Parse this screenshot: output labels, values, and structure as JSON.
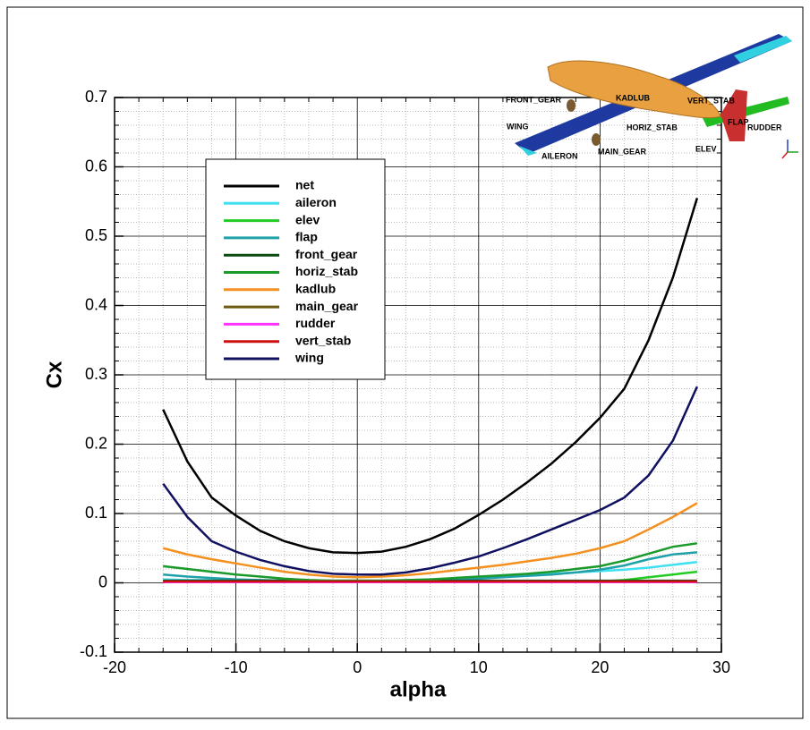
{
  "chart_data": {
    "type": "line",
    "xlabel": "alpha",
    "ylabel": "Cx",
    "x": [
      -16,
      -14,
      -12,
      -10,
      -8,
      -6,
      -4,
      -2,
      0,
      2,
      4,
      6,
      8,
      10,
      12,
      14,
      16,
      18,
      20,
      22,
      24,
      26,
      28
    ],
    "xlim": [
      -20,
      30
    ],
    "xticks": [
      -20,
      -10,
      0,
      10,
      20,
      30
    ],
    "ylim": [
      -0.1,
      0.7
    ],
    "yticks": [
      -0.1,
      0,
      0.1,
      0.2,
      0.3,
      0.4,
      0.5,
      0.6,
      0.7
    ],
    "grid": true,
    "series": [
      {
        "name": "net",
        "color": "#000000",
        "values": [
          0.25,
          0.175,
          0.123,
          0.097,
          0.075,
          0.06,
          0.05,
          0.044,
          0.043,
          0.045,
          0.052,
          0.063,
          0.078,
          0.098,
          0.12,
          0.145,
          0.172,
          0.203,
          0.238,
          0.28,
          0.35,
          0.44,
          0.555
        ]
      },
      {
        "name": "aileron",
        "color": "#40e0f0",
        "values": [
          0.005,
          0.004,
          0.004,
          0.003,
          0.003,
          0.003,
          0.003,
          0.003,
          0.003,
          0.003,
          0.003,
          0.004,
          0.005,
          0.007,
          0.009,
          0.011,
          0.013,
          0.015,
          0.017,
          0.019,
          0.022,
          0.026,
          0.03
        ]
      },
      {
        "name": "elev",
        "color": "#22cc22",
        "values": [
          0.003,
          0.002,
          0.002,
          0.002,
          0.002,
          0.002,
          0.002,
          0.002,
          0.002,
          0.002,
          0.002,
          0.002,
          0.002,
          0.002,
          0.002,
          0.002,
          0.002,
          0.002,
          0.002,
          0.004,
          0.008,
          0.012,
          0.016
        ]
      },
      {
        "name": "flap",
        "color": "#20a0a8",
        "values": [
          0.012,
          0.009,
          0.007,
          0.005,
          0.004,
          0.003,
          0.002,
          0.002,
          0.002,
          0.002,
          0.002,
          0.003,
          0.004,
          0.006,
          0.008,
          0.01,
          0.012,
          0.015,
          0.019,
          0.025,
          0.034,
          0.041,
          0.044
        ]
      },
      {
        "name": "front_gear",
        "color": "#0a4a10",
        "values": [
          0.003,
          0.003,
          0.003,
          0.003,
          0.003,
          0.003,
          0.003,
          0.003,
          0.003,
          0.003,
          0.003,
          0.003,
          0.003,
          0.003,
          0.003,
          0.003,
          0.003,
          0.003,
          0.003,
          0.003,
          0.003,
          0.003,
          0.003
        ]
      },
      {
        "name": "horiz_stab",
        "color": "#1a9a2a",
        "values": [
          0.024,
          0.02,
          0.016,
          0.012,
          0.009,
          0.006,
          0.004,
          0.003,
          0.003,
          0.003,
          0.004,
          0.005,
          0.007,
          0.009,
          0.011,
          0.013,
          0.016,
          0.02,
          0.024,
          0.032,
          0.042,
          0.052,
          0.057
        ]
      },
      {
        "name": "kadlub",
        "color": "#f39020",
        "values": [
          0.05,
          0.041,
          0.034,
          0.028,
          0.022,
          0.016,
          0.012,
          0.009,
          0.008,
          0.009,
          0.011,
          0.014,
          0.018,
          0.022,
          0.026,
          0.031,
          0.036,
          0.042,
          0.05,
          0.06,
          0.077,
          0.095,
          0.115
        ]
      },
      {
        "name": "main_gear",
        "color": "#6b5a10",
        "values": [
          0.002,
          0.002,
          0.002,
          0.002,
          0.002,
          0.002,
          0.002,
          0.002,
          0.002,
          0.002,
          0.002,
          0.002,
          0.002,
          0.002,
          0.002,
          0.002,
          0.002,
          0.002,
          0.002,
          0.002,
          0.002,
          0.002,
          0.002
        ]
      },
      {
        "name": "rudder",
        "color": "#ff33ff",
        "values": [
          0.001,
          0.001,
          0.001,
          0.001,
          0.001,
          0.001,
          0.001,
          0.001,
          0.001,
          0.001,
          0.001,
          0.001,
          0.001,
          0.001,
          0.001,
          0.001,
          0.001,
          0.001,
          0.001,
          0.001,
          0.001,
          0.001,
          0.001
        ]
      },
      {
        "name": "vert_stab",
        "color": "#cc1010",
        "values": [
          0.002,
          0.002,
          0.002,
          0.002,
          0.002,
          0.002,
          0.002,
          0.002,
          0.002,
          0.002,
          0.002,
          0.002,
          0.002,
          0.002,
          0.002,
          0.002,
          0.002,
          0.002,
          0.002,
          0.002,
          0.002,
          0.002,
          0.002
        ]
      },
      {
        "name": "wing",
        "color": "#101060",
        "values": [
          0.143,
          0.095,
          0.06,
          0.045,
          0.033,
          0.024,
          0.017,
          0.013,
          0.012,
          0.012,
          0.015,
          0.021,
          0.029,
          0.038,
          0.05,
          0.063,
          0.077,
          0.091,
          0.105,
          0.123,
          0.155,
          0.205,
          0.283
        ]
      }
    ]
  },
  "inset": {
    "labels": [
      "FLAP",
      "FRONT_GEAR",
      "KADLUB",
      "VERT_STAB",
      "WING",
      "HORIZ_STAB",
      "RUDDER",
      "AILERON",
      "MAIN_GEAR",
      "ELEV"
    ]
  }
}
